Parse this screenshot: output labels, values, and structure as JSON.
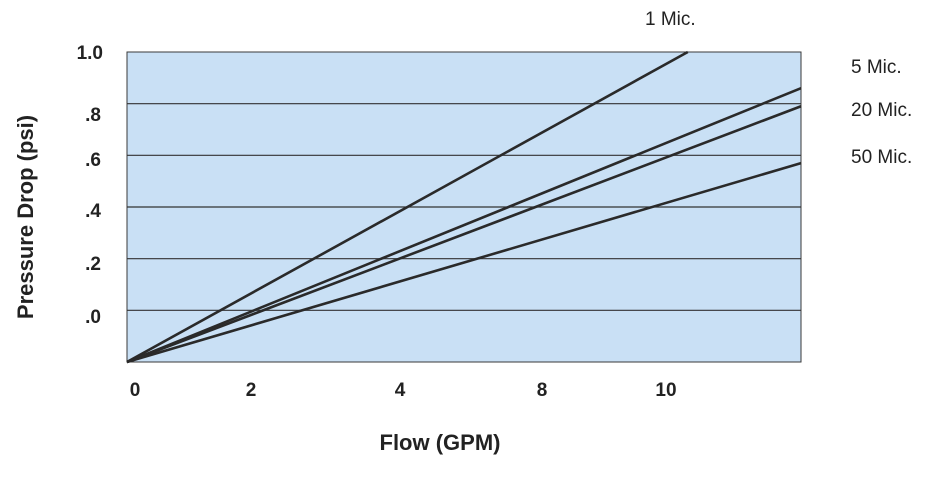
{
  "chart_data": {
    "type": "line",
    "xlabel": "Flow (GPM)",
    "ylabel": "Pressure Drop (psi)",
    "x_ticks": [
      "0",
      "2",
      "4",
      "8",
      "10"
    ],
    "y_ticks": [
      "1.0",
      ".8",
      ".6",
      ".4",
      ".2",
      ".0"
    ],
    "grid": true,
    "colors": {
      "plot_background": "#c9e0f5",
      "lines": "#2a2a2a",
      "grid": "#333333"
    },
    "series": [
      {
        "name": "1 Mic.",
        "points": [
          [
            0,
            -0.2
          ],
          [
            10.4,
            1.0
          ]
        ]
      },
      {
        "name": "5 Mic.",
        "points": [
          [
            0,
            -0.2
          ],
          [
            12.5,
            0.86
          ]
        ]
      },
      {
        "name": "20 Mic.",
        "points": [
          [
            0,
            -0.2
          ],
          [
            12.5,
            0.79
          ]
        ]
      },
      {
        "name": "50 Mic.",
        "points": [
          [
            0,
            -0.2
          ],
          [
            12.5,
            0.57
          ]
        ]
      }
    ]
  }
}
